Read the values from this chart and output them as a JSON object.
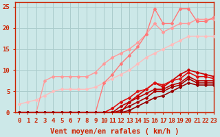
{
  "title": "",
  "xlabel": "Vent moyen/en rafales ( km/h )",
  "ylabel": "",
  "bg_color": "#cce8e8",
  "grid_color": "#aacccc",
  "spine_color": "#cc2200",
  "xlim": [
    -0.5,
    23
  ],
  "ylim": [
    0,
    26
  ],
  "xticks": [
    0,
    1,
    2,
    3,
    4,
    5,
    6,
    7,
    8,
    9,
    10,
    11,
    12,
    13,
    14,
    15,
    16,
    17,
    18,
    19,
    20,
    21,
    22,
    23
  ],
  "yticks": [
    0,
    5,
    10,
    15,
    20,
    25
  ],
  "lines": [
    {
      "x": [
        0,
        1,
        2,
        3,
        4,
        5,
        6,
        7,
        8,
        9,
        10,
        11,
        12,
        13,
        14,
        15,
        16,
        17,
        18,
        19,
        20,
        21,
        22,
        23
      ],
      "y": [
        2.0,
        2.5,
        3.0,
        4.0,
        5.0,
        5.5,
        5.5,
        5.5,
        5.5,
        6.0,
        7.0,
        8.0,
        9.0,
        10.0,
        11.5,
        13.0,
        14.0,
        15.0,
        16.0,
        17.0,
        18.0,
        18.0,
        18.0,
        18.0
      ],
      "color": "#ffbbbb",
      "lw": 1.0,
      "marker": "D",
      "ms": 2.0
    },
    {
      "x": [
        0,
        1,
        2,
        3,
        4,
        5,
        6,
        7,
        8,
        9,
        10,
        11,
        12,
        13,
        14,
        15,
        16,
        17,
        18,
        19,
        20,
        21,
        22,
        23
      ],
      "y": [
        0,
        0,
        0,
        7.5,
        8.5,
        8.5,
        8.5,
        8.5,
        8.5,
        9.5,
        11.5,
        13.0,
        14.0,
        15.0,
        16.5,
        18.5,
        21.0,
        19.0,
        20.0,
        21.0,
        21.0,
        22.0,
        22.0,
        22.0
      ],
      "color": "#ff9999",
      "lw": 1.0,
      "marker": "D",
      "ms": 2.0
    },
    {
      "x": [
        0,
        1,
        2,
        3,
        4,
        5,
        6,
        7,
        8,
        9,
        10,
        11,
        12,
        13,
        14,
        15,
        16,
        17,
        18,
        19,
        20,
        21,
        22,
        23
      ],
      "y": [
        0,
        0,
        0,
        0,
        0,
        0,
        0,
        0,
        0,
        0,
        7.0,
        9.0,
        11.5,
        13.5,
        15.5,
        18.5,
        24.5,
        21.0,
        21.0,
        24.5,
        24.5,
        21.5,
        21.5,
        22.5
      ],
      "color": "#ff7777",
      "lw": 1.0,
      "marker": "D",
      "ms": 2.0
    },
    {
      "x": [
        0,
        1,
        2,
        3,
        4,
        5,
        6,
        7,
        8,
        9,
        10,
        11,
        12,
        13,
        14,
        15,
        16,
        17,
        18,
        19,
        20,
        21,
        22,
        23
      ],
      "y": [
        0,
        0,
        0,
        0,
        0,
        0,
        0,
        0,
        0,
        0,
        0,
        0,
        0,
        2.5,
        4.0,
        5.5,
        7.0,
        6.0,
        7.5,
        9.0,
        10.0,
        9.5,
        9.0,
        8.5
      ],
      "color": "#cc0000",
      "lw": 1.2,
      "marker": "D",
      "ms": 2.0
    },
    {
      "x": [
        0,
        1,
        2,
        3,
        4,
        5,
        6,
        7,
        8,
        9,
        10,
        11,
        12,
        13,
        14,
        15,
        16,
        17,
        18,
        19,
        20,
        21,
        22,
        23
      ],
      "y": [
        0,
        0,
        0,
        0,
        0,
        0,
        0,
        0,
        0,
        0,
        0,
        1.0,
        2.5,
        3.5,
        5.0,
        5.5,
        7.0,
        6.5,
        7.5,
        8.0,
        9.5,
        8.5,
        8.5,
        8.0
      ],
      "color": "#dd1111",
      "lw": 1.2,
      "marker": "D",
      "ms": 2.0
    },
    {
      "x": [
        0,
        1,
        2,
        3,
        4,
        5,
        6,
        7,
        8,
        9,
        10,
        11,
        12,
        13,
        14,
        15,
        16,
        17,
        18,
        19,
        20,
        21,
        22,
        23
      ],
      "y": [
        0,
        0,
        0,
        0,
        0,
        0,
        0,
        0,
        0,
        0,
        0,
        0,
        1.5,
        2.5,
        3.5,
        4.5,
        5.5,
        5.5,
        6.5,
        7.0,
        8.5,
        7.5,
        7.5,
        7.5
      ],
      "color": "#bb0000",
      "lw": 1.2,
      "marker": "D",
      "ms": 2.0
    },
    {
      "x": [
        0,
        1,
        2,
        3,
        4,
        5,
        6,
        7,
        8,
        9,
        10,
        11,
        12,
        13,
        14,
        15,
        16,
        17,
        18,
        19,
        20,
        21,
        22,
        23
      ],
      "y": [
        0,
        0,
        0,
        0,
        0,
        0,
        0,
        0,
        0,
        0,
        0,
        0,
        0.5,
        1.5,
        2.5,
        3.5,
        5.0,
        5.0,
        6.0,
        6.5,
        8.0,
        7.0,
        7.0,
        7.0
      ],
      "color": "#aa0000",
      "lw": 1.2,
      "marker": "D",
      "ms": 2.0
    },
    {
      "x": [
        0,
        1,
        2,
        3,
        4,
        5,
        6,
        7,
        8,
        9,
        10,
        11,
        12,
        13,
        14,
        15,
        16,
        17,
        18,
        19,
        20,
        21,
        22,
        23
      ],
      "y": [
        0,
        0,
        0,
        0,
        0,
        0,
        0,
        0,
        0,
        0,
        0,
        0,
        0,
        0.5,
        1.5,
        2.5,
        3.5,
        4.0,
        5.0,
        6.0,
        7.0,
        6.5,
        6.5,
        6.5
      ],
      "color": "#990000",
      "lw": 1.2,
      "marker": "D",
      "ms": 2.0
    }
  ],
  "xlabel_color": "#cc2200",
  "xlabel_fontsize": 7.5,
  "tick_fontsize": 6.5,
  "tick_color": "#cc2200"
}
